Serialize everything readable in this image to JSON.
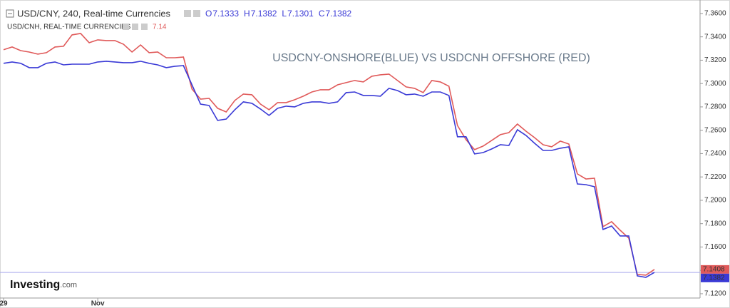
{
  "chart_data": {
    "type": "line",
    "title": "USDCNY-ONSHORE(BLUE) VS USDCNH OFFSHORE (RED)",
    "categories": [
      "29",
      null,
      null,
      null,
      null,
      null,
      null,
      null,
      null,
      null,
      null,
      "Nov",
      null,
      null,
      null,
      null,
      null,
      null,
      null,
      null,
      null,
      null,
      null,
      null,
      null,
      null,
      null,
      null,
      null,
      null,
      null,
      null,
      null,
      null,
      null,
      null,
      null,
      null,
      null,
      null,
      null,
      null,
      null,
      null,
      null,
      null,
      null,
      null,
      null,
      null,
      null,
      null,
      null,
      null,
      null,
      null,
      null,
      null,
      null,
      null,
      null,
      null,
      null,
      null,
      null,
      null,
      null,
      null,
      null,
      null,
      null,
      null,
      null,
      null,
      null,
      null,
      null
    ],
    "series": [
      {
        "name": "USD/CNH, REAL-TIME CURRENCIES",
        "color": "#e05a5a",
        "quote": 7.14,
        "values": [
          7.3289,
          7.3313,
          7.3282,
          7.327,
          7.3252,
          7.3264,
          7.3313,
          7.3319,
          7.3417,
          7.3429,
          7.335,
          7.3374,
          7.3368,
          7.3368,
          7.3337,
          7.327,
          7.3331,
          7.3264,
          7.327,
          7.3221,
          7.3221,
          7.3227,
          7.2953,
          7.2867,
          7.2873,
          7.2788,
          7.2757,
          7.2855,
          7.291,
          7.2904,
          7.2824,
          7.2776,
          7.2837,
          7.2837,
          7.2861,
          7.2892,
          7.2928,
          7.2947,
          7.2947,
          7.2989,
          7.3008,
          7.3026,
          7.3014,
          7.3063,
          7.3075,
          7.3081,
          7.3026,
          7.2971,
          7.2959,
          7.2922,
          7.3026,
          7.3014,
          7.2977,
          7.2641,
          7.2519,
          7.2434,
          7.2464,
          7.2513,
          7.2562,
          7.258,
          7.2653,
          7.2592,
          7.2537,
          7.2476,
          7.2458,
          7.2507,
          7.2482,
          7.2226,
          7.2183,
          7.2189,
          7.1774,
          7.1817,
          7.1744,
          7.1676,
          7.1365,
          7.1359,
          7.1408
        ]
      },
      {
        "name": "USD/CNY, 240, Real-time Currencies",
        "color": "#3a3ad6",
        "ohlc": {
          "labels": [
            "O",
            "H",
            "L",
            "C"
          ],
          "values": [
            7.1333,
            7.1382,
            7.1301,
            7.1382
          ]
        },
        "values": [
          7.3173,
          7.3185,
          7.3173,
          7.3136,
          7.3136,
          7.3173,
          7.3185,
          7.316,
          7.3166,
          7.3166,
          7.3166,
          7.3185,
          7.3191,
          7.3185,
          7.3179,
          7.3179,
          7.3191,
          7.3173,
          7.316,
          7.3136,
          7.3148,
          7.3154,
          7.2989,
          7.2824,
          7.2812,
          7.2684,
          7.2696,
          7.2776,
          7.2843,
          7.2831,
          7.2782,
          7.2727,
          7.2788,
          7.2806,
          7.28,
          7.2831,
          7.2843,
          7.2843,
          7.2831,
          7.2843,
          7.2922,
          7.2928,
          7.2898,
          7.2898,
          7.2892,
          7.2959,
          7.294,
          7.2904,
          7.291,
          7.2892,
          7.2928,
          7.2928,
          7.2898,
          7.2544,
          7.2544,
          7.2397,
          7.2409,
          7.244,
          7.2476,
          7.247,
          7.2605,
          7.2556,
          7.2489,
          7.2427,
          7.2427,
          7.2446,
          7.2458,
          7.214,
          7.2134,
          7.2116,
          7.175,
          7.178,
          7.1695,
          7.1695,
          7.1353,
          7.134,
          7.1382
        ]
      }
    ],
    "ylim": [
      7.1163,
      7.3685
    ],
    "yticks": [
      {
        "value": 7.12,
        "label": "7.1200"
      },
      {
        "value": 7.14,
        "label": "7.1400"
      },
      {
        "value": 7.16,
        "label": "7.1600"
      },
      {
        "value": 7.18,
        "label": "7.1800"
      },
      {
        "value": 7.2,
        "label": "7.2000"
      },
      {
        "value": 7.22,
        "label": "7.2200"
      },
      {
        "value": 7.24,
        "label": "7.2400"
      },
      {
        "value": 7.26,
        "label": "7.2600"
      },
      {
        "value": 7.28,
        "label": "7.2800"
      },
      {
        "value": 7.3,
        "label": "7.3000"
      },
      {
        "value": 7.32,
        "label": "7.3200"
      },
      {
        "value": 7.34,
        "label": "7.3400"
      },
      {
        "value": 7.36,
        "label": "7.3600"
      }
    ],
    "y_axis_side": "right",
    "grid": false
  },
  "logo": {
    "brand": "Investing",
    "suffix": ".com"
  }
}
